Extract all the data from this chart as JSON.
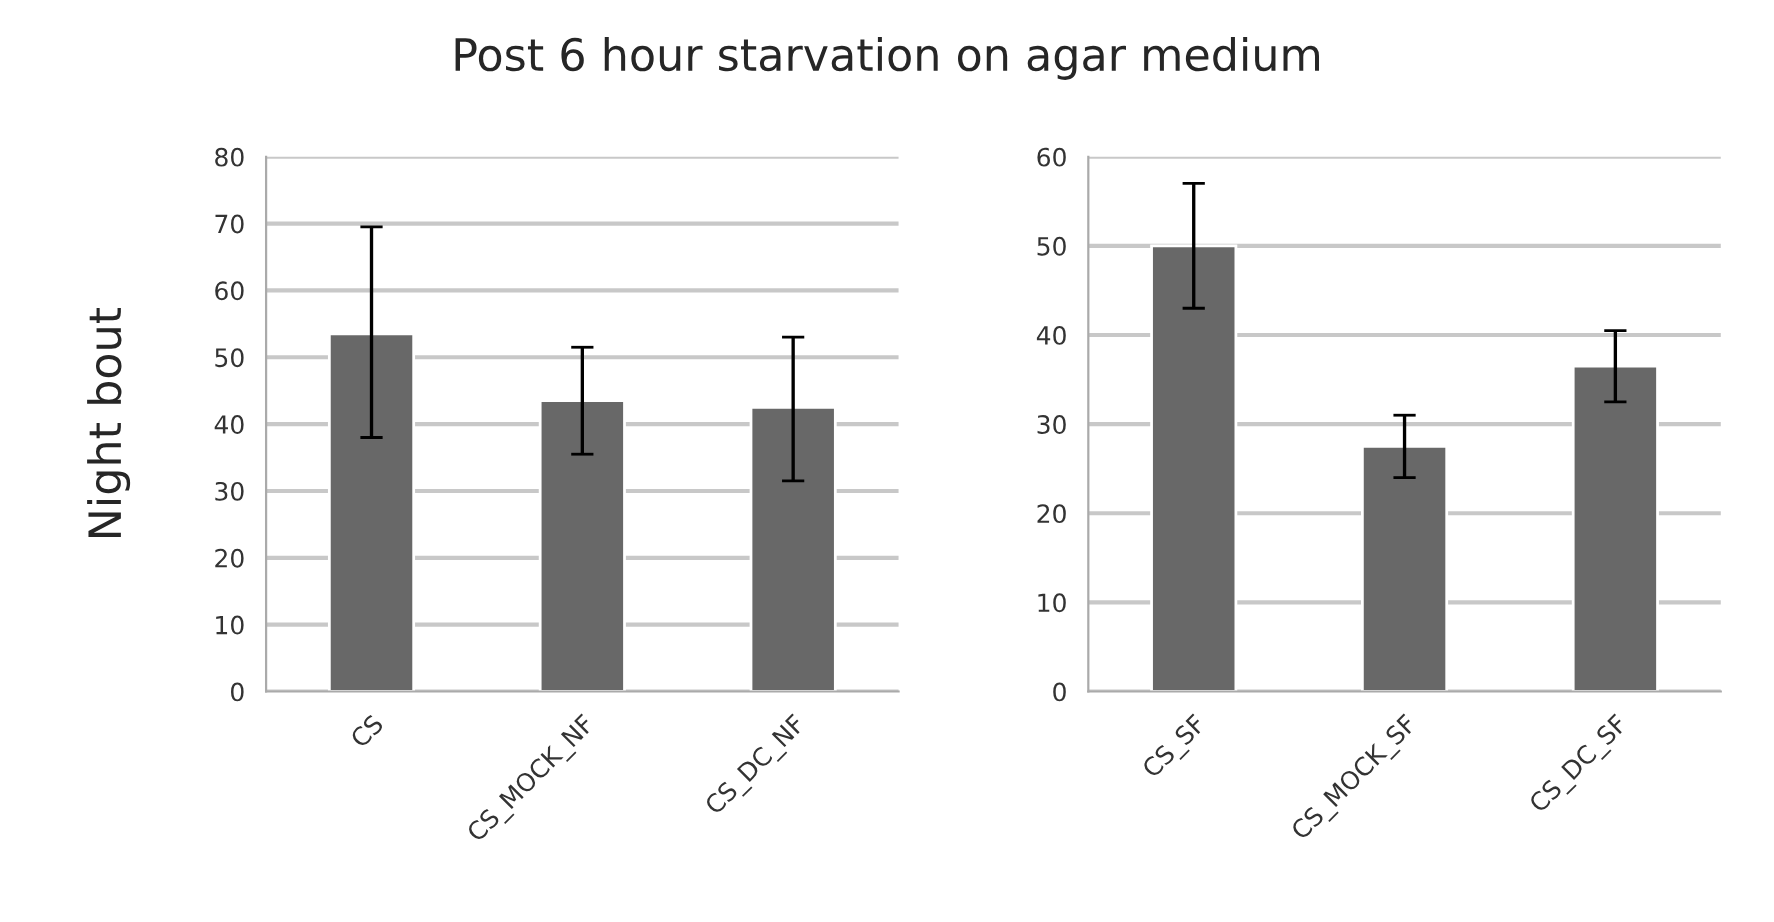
{
  "chart_data": [
    {
      "type": "bar",
      "title": "Post 6 hour starvation on agar medium",
      "ylabel": "Night bout",
      "categories": [
        "CS",
        "CS_MOCK_NF",
        "CS_DC_NF"
      ],
      "values": [
        53.5,
        43.5,
        42.5
      ],
      "errors": [
        [
          38,
          69.5
        ],
        [
          35.5,
          51.5
        ],
        [
          31.5,
          53
        ]
      ],
      "color": "#686868",
      "ylim": [
        0,
        80
      ],
      "yticks": [
        0,
        10,
        20,
        30,
        40,
        50,
        60,
        70,
        80
      ],
      "grid": "y"
    },
    {
      "type": "bar",
      "categories": [
        "CS_SF",
        "CS_MOCK_SF",
        "CS_DC_SF"
      ],
      "values": [
        50,
        27.5,
        36.5
      ],
      "errors": [
        [
          43,
          57
        ],
        [
          24,
          31
        ],
        [
          32.5,
          40.5
        ]
      ],
      "color": "#686868",
      "ylim": [
        0,
        60
      ],
      "yticks": [
        0,
        10,
        20,
        30,
        40,
        50,
        60
      ],
      "grid": "y"
    }
  ]
}
